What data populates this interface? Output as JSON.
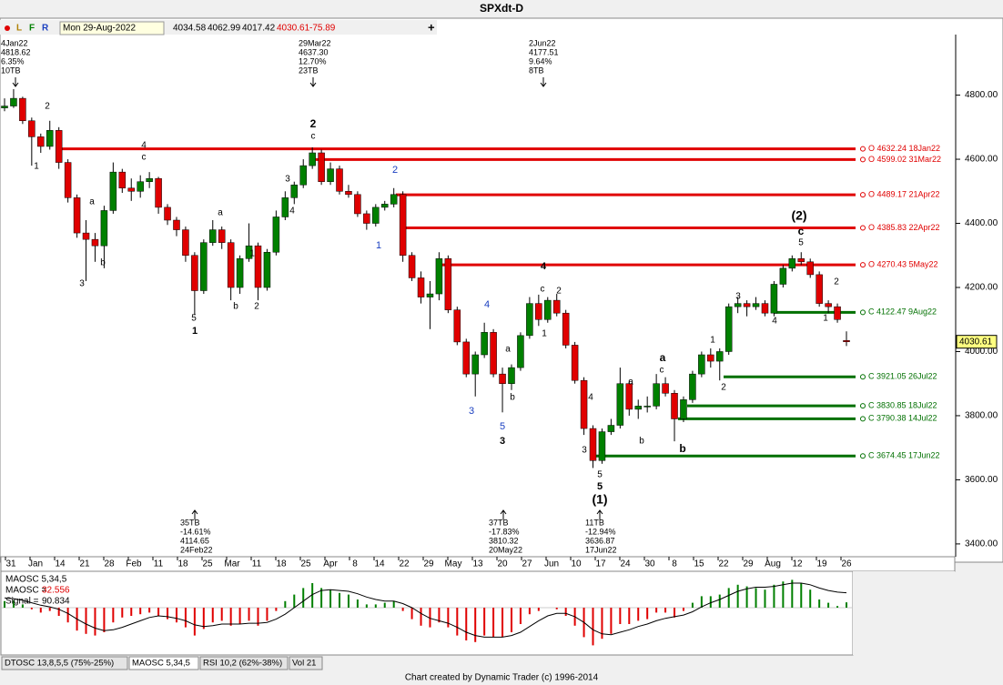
{
  "chart_data": [
    {
      "type": "candlestick",
      "title": "SPXdt-D",
      "ylim": [
        3360,
        5040
      ],
      "yticks": [
        {
          "value": 4800,
          "label": "4800.00"
        },
        {
          "value": 4600,
          "label": "4600.00"
        },
        {
          "value": 4400,
          "label": "4400.00"
        },
        {
          "value": 4200,
          "label": "4200.00"
        },
        {
          "value": 4000,
          "label": "4000.00"
        },
        {
          "value": 3800,
          "label": "3800.00"
        },
        {
          "value": 3600,
          "label": "3600.00"
        },
        {
          "value": 3400,
          "label": "3400.00"
        }
      ],
      "xlabels": [
        "31",
        "Jan",
        "14",
        "21",
        "28",
        "Feb",
        "11",
        "18",
        "25",
        "Mar",
        "11",
        "18",
        "25",
        "Apr",
        "8",
        "14",
        "22",
        "29",
        "May",
        "13",
        "20",
        "27",
        "Jun",
        "10",
        "17",
        "24",
        "30",
        "8",
        "15",
        "22",
        "29",
        "Aug",
        "12",
        "19",
        "26"
      ],
      "up_color": "#008000",
      "down_color": "#e00000",
      "candles": [
        [
          4760,
          4790,
          4750,
          4766
        ],
        [
          4766,
          4818.62,
          4760,
          4790
        ],
        [
          4790,
          4795,
          4710,
          4720
        ],
        [
          4720,
          4730,
          4580,
          4670
        ],
        [
          4670,
          4680,
          4620,
          4640
        ],
        [
          4640,
          4720,
          4630,
          4690
        ],
        [
          4690,
          4700,
          4570,
          4590
        ],
        [
          4590,
          4600,
          4465,
          4480
        ],
        [
          4480,
          4490,
          4355,
          4370
        ],
        [
          4370,
          4410,
          4220,
          4350
        ],
        [
          4350,
          4370,
          4280,
          4330
        ],
        [
          4330,
          4455,
          4260,
          4440
        ],
        [
          4440,
          4590,
          4430,
          4560
        ],
        [
          4560,
          4570,
          4495,
          4510
        ],
        [
          4510,
          4540,
          4470,
          4500
        ],
        [
          4500,
          4550,
          4480,
          4530
        ],
        [
          4530,
          4560,
          4510,
          4540
        ],
        [
          4540,
          4545,
          4430,
          4450
        ],
        [
          4450,
          4460,
          4395,
          4410
        ],
        [
          4410,
          4420,
          4360,
          4380
        ],
        [
          4380,
          4390,
          4280,
          4300
        ],
        [
          4300,
          4310,
          4114.65,
          4190
        ],
        [
          4190,
          4350,
          4180,
          4340
        ],
        [
          4340,
          4410,
          4330,
          4380
        ],
        [
          4380,
          4390,
          4320,
          4340
        ],
        [
          4340,
          4350,
          4160,
          4200
        ],
        [
          4200,
          4300,
          4180,
          4290
        ],
        [
          4290,
          4400,
          4280,
          4330
        ],
        [
          4330,
          4340,
          4160,
          4200
        ],
        [
          4200,
          4320,
          4190,
          4310
        ],
        [
          4310,
          4440,
          4300,
          4420
        ],
        [
          4420,
          4500,
          4410,
          4480
        ],
        [
          4480,
          4530,
          4460,
          4520
        ],
        [
          4520,
          4600,
          4510,
          4580
        ],
        [
          4580,
          4637.3,
          4570,
          4620
        ],
        [
          4620,
          4630,
          4520,
          4530
        ],
        [
          4530,
          4590,
          4520,
          4570
        ],
        [
          4570,
          4580,
          4490,
          4500
        ],
        [
          4500,
          4520,
          4480,
          4490
        ],
        [
          4490,
          4500,
          4420,
          4430
        ],
        [
          4430,
          4440,
          4380,
          4400
        ],
        [
          4400,
          4460,
          4390,
          4450
        ],
        [
          4450,
          4470,
          4440,
          4460
        ],
        [
          4460,
          4510,
          4450,
          4490
        ],
        [
          4490,
          4500,
          4280,
          4300
        ],
        [
          4300,
          4310,
          4220,
          4230
        ],
        [
          4230,
          4250,
          4150,
          4170
        ],
        [
          4170,
          4220,
          4070,
          4180
        ],
        [
          4180,
          4310,
          4160,
          4290
        ],
        [
          4290,
          4300,
          4120,
          4130
        ],
        [
          4130,
          4140,
          4020,
          4030
        ],
        [
          4030,
          4040,
          3920,
          3930
        ],
        [
          3930,
          4000,
          3860,
          3990
        ],
        [
          3990,
          4090,
          3980,
          4060
        ],
        [
          4060,
          4070,
          3920,
          3930
        ],
        [
          3930,
          3950,
          3810.32,
          3900
        ],
        [
          3900,
          3960,
          3880,
          3950
        ],
        [
          3950,
          4060,
          3940,
          4050
        ],
        [
          4050,
          4170,
          4040,
          4150
        ],
        [
          4150,
          4177.51,
          4080,
          4100
        ],
        [
          4100,
          4170,
          4090,
          4160
        ],
        [
          4160,
          4180,
          4110,
          4120
        ],
        [
          4120,
          4130,
          4010,
          4020
        ],
        [
          4020,
          4030,
          3900,
          3910
        ],
        [
          3910,
          3920,
          3740,
          3760
        ],
        [
          3760,
          3770,
          3636.87,
          3660
        ],
        [
          3660,
          3760,
          3650,
          3750
        ],
        [
          3750,
          3790,
          3740,
          3770
        ],
        [
          3770,
          3950,
          3760,
          3900
        ],
        [
          3900,
          3910,
          3800,
          3820
        ],
        [
          3820,
          3850,
          3790,
          3830
        ],
        [
          3830,
          3860,
          3810,
          3830
        ],
        [
          3830,
          3930,
          3820,
          3900
        ],
        [
          3900,
          3920,
          3860,
          3870
        ],
        [
          3870,
          3880,
          3720,
          3790
        ],
        [
          3790,
          3860,
          3780,
          3850
        ],
        [
          3850,
          3940,
          3840,
          3930
        ],
        [
          3930,
          4000,
          3920,
          3990
        ],
        [
          3990,
          4010,
          3950,
          3970
        ],
        [
          3970,
          4010,
          3910,
          4000
        ],
        [
          4000,
          4150,
          3990,
          4140
        ],
        [
          4140,
          4170,
          4120,
          4150
        ],
        [
          4150,
          4160,
          4110,
          4140
        ],
        [
          4140,
          4170,
          4130,
          4150
        ],
        [
          4150,
          4160,
          4110,
          4120
        ],
        [
          4120,
          4220,
          4110,
          4210
        ],
        [
          4210,
          4270,
          4200,
          4260
        ],
        [
          4260,
          4300,
          4250,
          4290
        ],
        [
          4290,
          4310,
          4270,
          4280
        ],
        [
          4280,
          4290,
          4230,
          4240
        ],
        [
          4240,
          4250,
          4140,
          4150
        ],
        [
          4150,
          4160,
          4120,
          4140
        ],
        [
          4140,
          4150,
          4090,
          4100
        ],
        [
          4034.58,
          4062.99,
          4017.42,
          4030.61
        ]
      ],
      "levels": [
        {
          "value": 4632.24,
          "label": "O 4632.24 18Jan22",
          "color": "#e00000"
        },
        {
          "value": 4599.02,
          "label": "O 4599.02 31Mar22",
          "color": "#e00000"
        },
        {
          "value": 4489.17,
          "label": "O 4489.17 21Apr22",
          "color": "#e00000"
        },
        {
          "value": 4385.83,
          "label": "O 4385.83 22Apr22",
          "color": "#e00000"
        },
        {
          "value": 4270.43,
          "label": "O 4270.43 5May22",
          "color": "#e00000"
        },
        {
          "value": 4122.47,
          "label": "C 4122.47 9Aug22",
          "color": "#007000"
        },
        {
          "value": 3921.05,
          "label": "C 3921.05 26Jul22",
          "color": "#007000"
        },
        {
          "value": 3830.85,
          "label": "C 3830.85 18Jul22",
          "color": "#007000"
        },
        {
          "value": 3790.38,
          "label": "C 3790.38 14Jul22",
          "color": "#007000"
        },
        {
          "value": 3674.45,
          "label": "C 3674.45 17Jun22",
          "color": "#007000"
        }
      ],
      "annotations": [
        [
          "4Jan22",
          "4818.62",
          "6.35%",
          "10TB"
        ],
        [
          "29Mar22",
          "4637.30",
          "12.70%",
          "23TB"
        ],
        [
          "2Jun22",
          "4177.51",
          "9.64%",
          "8TB"
        ],
        [
          "35TB",
          "-14.61%",
          "4114.65",
          "24Feb22"
        ],
        [
          "37TB",
          "-17.83%",
          "3810.32",
          "20May22"
        ],
        [
          "11TB",
          "-12.94%",
          "3636.87",
          "17Jun22"
        ]
      ],
      "wave_labels": [
        {
          "text": "1",
          "color": "#000"
        },
        {
          "text": "2",
          "color": "#000"
        },
        {
          "text": "3",
          "color": "#000"
        },
        {
          "text": "4",
          "color": "#000"
        },
        {
          "text": "c",
          "color": "#000"
        },
        {
          "text": "a",
          "color": "#000"
        },
        {
          "text": "b",
          "color": "#000"
        },
        {
          "text": "5",
          "color": "#000"
        },
        {
          "text": "1",
          "color": "#000"
        },
        {
          "text": "a",
          "color": "#000"
        },
        {
          "text": "b",
          "color": "#000"
        },
        {
          "text": "1",
          "color": "#000"
        },
        {
          "text": "2",
          "color": "#000"
        },
        {
          "text": "3",
          "color": "#000"
        },
        {
          "text": "4",
          "color": "#000"
        },
        {
          "text": "2",
          "color": "#000"
        },
        {
          "text": "c",
          "color": "#000"
        },
        {
          "text": "2",
          "color": "#1a3fc0"
        },
        {
          "text": "1",
          "color": "#1a3fc0"
        },
        {
          "text": "4",
          "color": "#1a3fc0"
        },
        {
          "text": "3",
          "color": "#1a3fc0"
        },
        {
          "text": "5",
          "color": "#1a3fc0"
        },
        {
          "text": "3",
          "color": "#000"
        },
        {
          "text": "4",
          "color": "#000"
        },
        {
          "text": "c",
          "color": "#000"
        },
        {
          "text": "2",
          "color": "#000"
        },
        {
          "text": "1",
          "color": "#000"
        },
        {
          "text": "a",
          "color": "#000"
        },
        {
          "text": "b",
          "color": "#000"
        },
        {
          "text": "4",
          "color": "#000"
        },
        {
          "text": "3",
          "color": "#000"
        },
        {
          "text": "5",
          "color": "#000"
        },
        {
          "text": "5",
          "color": "#000"
        },
        {
          "text": "(1)",
          "color": "#000"
        },
        {
          "text": "a",
          "color": "#000"
        },
        {
          "text": "b",
          "color": "#000"
        },
        {
          "text": "a",
          "color": "#000"
        },
        {
          "text": "c",
          "color": "#000"
        },
        {
          "text": "b",
          "color": "#000"
        },
        {
          "text": "1",
          "color": "#000"
        },
        {
          "text": "2",
          "color": "#000"
        },
        {
          "text": "3",
          "color": "#000"
        },
        {
          "text": "4",
          "color": "#000"
        },
        {
          "text": "5",
          "color": "#000"
        },
        {
          "text": "c",
          "color": "#000"
        },
        {
          "text": "(2)",
          "color": "#000"
        },
        {
          "text": "2",
          "color": "#000"
        },
        {
          "text": "1",
          "color": "#000"
        }
      ]
    },
    {
      "type": "oscillator",
      "title": "MAOSC 5,34,5",
      "readout": [
        "MAOSC =",
        "Signal ="
      ],
      "ylim": [
        -200,
        200
      ],
      "series": [
        {
          "name": "MAOSC",
          "values": [
            40,
            45,
            20,
            -10,
            -30,
            -20,
            -50,
            -90,
            -140,
            -160,
            -170,
            -150,
            -90,
            -60,
            -50,
            -40,
            -30,
            -50,
            -70,
            -90,
            -120,
            -170,
            -130,
            -90,
            -80,
            -110,
            -100,
            -80,
            -110,
            -80,
            -20,
            40,
            80,
            120,
            150,
            120,
            110,
            90,
            80,
            50,
            20,
            20,
            30,
            40,
            -20,
            -70,
            -110,
            -120,
            -90,
            -120,
            -170,
            -200,
            -210,
            -170,
            -180,
            -180,
            -150,
            -100,
            -40,
            -20,
            0,
            -10,
            -50,
            -110,
            -180,
            -230,
            -190,
            -160,
            -100,
            -100,
            -80,
            -70,
            -30,
            -30,
            -60,
            -20,
            30,
            70,
            70,
            80,
            120,
            140,
            130,
            120,
            110,
            140,
            160,
            170,
            150,
            110,
            50,
            30,
            10,
            32.556
          ]
        },
        {
          "name": "Signal",
          "values": [
            60,
            55,
            45,
            30,
            15,
            5,
            -10,
            -35,
            -70,
            -100,
            -125,
            -140,
            -135,
            -120,
            -100,
            -80,
            -60,
            -50,
            -55,
            -65,
            -80,
            -105,
            -115,
            -110,
            -100,
            -100,
            -100,
            -95,
            -95,
            -90,
            -70,
            -40,
            0,
            40,
            80,
            105,
            110,
            105,
            100,
            85,
            65,
            50,
            40,
            40,
            25,
            0,
            -35,
            -65,
            -80,
            -95,
            -120,
            -150,
            -170,
            -180,
            -180,
            -180,
            -170,
            -150,
            -115,
            -80,
            -50,
            -35,
            -35,
            -55,
            -90,
            -135,
            -160,
            -165,
            -150,
            -135,
            -115,
            -100,
            -80,
            -65,
            -55,
            -45,
            -25,
            5,
            30,
            50,
            75,
            100,
            115,
            125,
            125,
            130,
            140,
            150,
            150,
            140,
            120,
            105,
            95,
            90.834
          ]
        }
      ]
    }
  ],
  "ui": {
    "toolbar": {
      "date": "Mon 29-Aug-2022",
      "change": -75.89,
      "buttons": [
        "L",
        "F",
        "R"
      ]
    },
    "tabs": [
      "DTOSC 13,8,5,5 (75%-25%)",
      "MAOSC 5,34,5",
      "RSI 10,2 (62%-38%)",
      "Vol 21"
    ],
    "footer": "Chart created by Dynamic Trader  (c)  1996-2014"
  }
}
